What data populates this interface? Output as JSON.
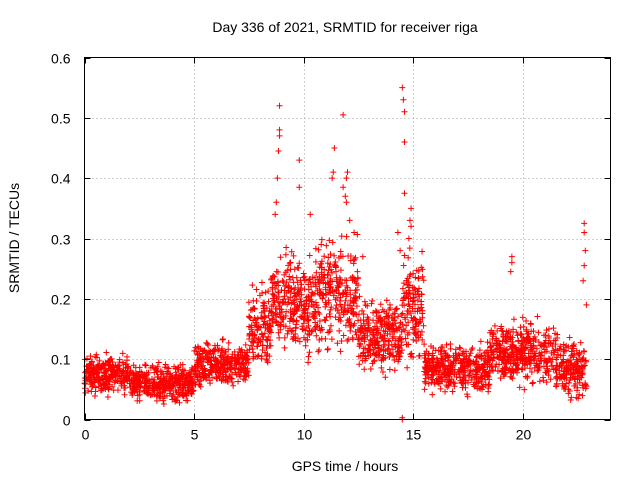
{
  "chart_data": {
    "type": "scatter",
    "title": "Day 336 of 2021, SRMTID for receiver riga",
    "xlabel": "GPS time / hours",
    "ylabel": "SRMTID / TECUs",
    "xlim": [
      0,
      24
    ],
    "ylim": [
      0,
      0.6
    ],
    "x_ticks": [
      0,
      5,
      10,
      15,
      20
    ],
    "x_tick_labels": [
      "0",
      "5",
      "10",
      "15",
      "20"
    ],
    "y_ticks": [
      0,
      0.1,
      0.2,
      0.3,
      0.4,
      0.5,
      0.6
    ],
    "y_tick_labels": [
      "0",
      "0.1",
      "0.2",
      "0.3",
      "0.4",
      "0.5",
      "0.6"
    ],
    "grid": true,
    "marker": "plus",
    "color": "#ff0000",
    "series": [
      {
        "name": "SRMTID",
        "description": "dense cloud of observations; baseline values per time window plus isolated peaks",
        "baseline": [
          {
            "x": [
              0.0,
              2.0
            ],
            "y": [
              0.03,
              0.12
            ]
          },
          {
            "x": [
              2.0,
              5.0
            ],
            "y": [
              0.02,
              0.1
            ]
          },
          {
            "x": [
              5.0,
              7.5
            ],
            "y": [
              0.04,
              0.14
            ]
          },
          {
            "x": [
              7.5,
              8.5
            ],
            "y": [
              0.06,
              0.25
            ]
          },
          {
            "x": [
              8.5,
              10.5
            ],
            "y": [
              0.08,
              0.3
            ]
          },
          {
            "x": [
              10.5,
              12.5
            ],
            "y": [
              0.08,
              0.33
            ]
          },
          {
            "x": [
              12.5,
              14.5
            ],
            "y": [
              0.06,
              0.22
            ]
          },
          {
            "x": [
              14.5,
              15.5
            ],
            "y": [
              0.06,
              0.3
            ]
          },
          {
            "x": [
              15.5,
              18.5
            ],
            "y": [
              0.03,
              0.14
            ]
          },
          {
            "x": [
              18.5,
              21.5
            ],
            "y": [
              0.04,
              0.18
            ]
          },
          {
            "x": [
              21.5,
              22.9
            ],
            "y": [
              0.02,
              0.15
            ]
          }
        ],
        "peaks": [
          {
            "x": 8.9,
            "y": 0.52
          },
          {
            "x": 8.9,
            "y": 0.48
          },
          {
            "x": 8.9,
            "y": 0.47
          },
          {
            "x": 8.85,
            "y": 0.445
          },
          {
            "x": 8.8,
            "y": 0.4
          },
          {
            "x": 8.75,
            "y": 0.36
          },
          {
            "x": 8.7,
            "y": 0.34
          },
          {
            "x": 9.8,
            "y": 0.43
          },
          {
            "x": 9.8,
            "y": 0.385
          },
          {
            "x": 10.3,
            "y": 0.34
          },
          {
            "x": 11.4,
            "y": 0.45
          },
          {
            "x": 11.35,
            "y": 0.41
          },
          {
            "x": 11.3,
            "y": 0.4
          },
          {
            "x": 11.8,
            "y": 0.505
          },
          {
            "x": 12.0,
            "y": 0.41
          },
          {
            "x": 11.95,
            "y": 0.4
          },
          {
            "x": 11.8,
            "y": 0.385
          },
          {
            "x": 11.9,
            "y": 0.37
          },
          {
            "x": 11.95,
            "y": 0.36
          },
          {
            "x": 12.1,
            "y": 0.33
          },
          {
            "x": 12.3,
            "y": 0.31
          },
          {
            "x": 14.5,
            "y": 0.55
          },
          {
            "x": 14.55,
            "y": 0.53
          },
          {
            "x": 14.6,
            "y": 0.51
          },
          {
            "x": 14.6,
            "y": 0.46
          },
          {
            "x": 14.6,
            "y": 0.375
          },
          {
            "x": 14.9,
            "y": 0.35
          },
          {
            "x": 14.85,
            "y": 0.33
          },
          {
            "x": 14.9,
            "y": 0.32
          },
          {
            "x": 14.8,
            "y": 0.3
          },
          {
            "x": 14.3,
            "y": 0.31
          },
          {
            "x": 14.4,
            "y": 0.28
          },
          {
            "x": 14.5,
            "y": 0.0
          },
          {
            "x": 14.5,
            "y": 0.003
          },
          {
            "x": 19.5,
            "y": 0.27
          },
          {
            "x": 19.5,
            "y": 0.26
          },
          {
            "x": 19.45,
            "y": 0.245
          },
          {
            "x": 22.8,
            "y": 0.325
          },
          {
            "x": 22.8,
            "y": 0.31
          },
          {
            "x": 22.85,
            "y": 0.28
          },
          {
            "x": 22.8,
            "y": 0.255
          },
          {
            "x": 22.75,
            "y": 0.23
          },
          {
            "x": 22.9,
            "y": 0.19
          },
          {
            "x": 9.2,
            "y": 0.285
          },
          {
            "x": 10.8,
            "y": 0.29
          },
          {
            "x": 12.7,
            "y": 0.27
          }
        ]
      }
    ]
  }
}
